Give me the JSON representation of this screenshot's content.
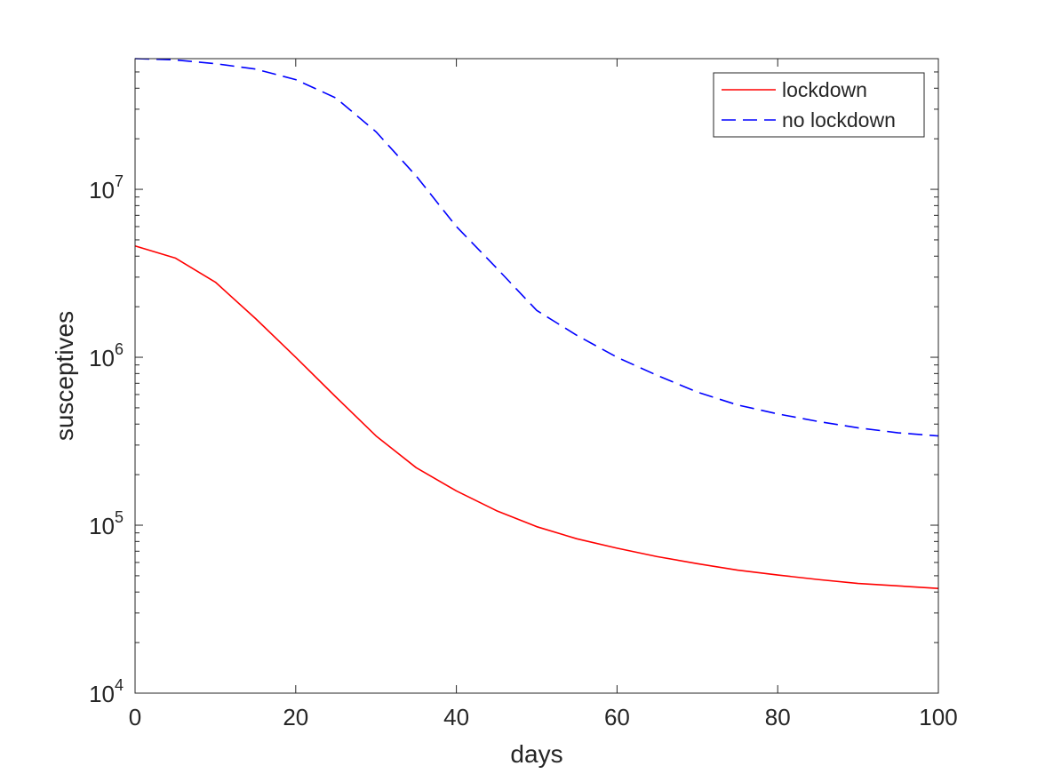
{
  "chart_data": {
    "type": "line",
    "xlabel": "days",
    "ylabel": "susceptives",
    "xlim": [
      0,
      100
    ],
    "ylim": [
      10000,
      60000000
    ],
    "yscale": "log",
    "xticks": [
      0,
      20,
      40,
      60,
      80,
      100
    ],
    "yticks": [
      {
        "value": 10000,
        "base": "10",
        "exp": "4"
      },
      {
        "value": 100000,
        "base": "10",
        "exp": "5"
      },
      {
        "value": 1000000,
        "base": "10",
        "exp": "6"
      },
      {
        "value": 10000000,
        "base": "10",
        "exp": "7"
      }
    ],
    "grid": false,
    "legend_position": "top-right",
    "series": [
      {
        "name": "lockdown",
        "color": "#ff0000",
        "style": "solid",
        "x": [
          0,
          5,
          10,
          15,
          20,
          25,
          30,
          35,
          40,
          45,
          50,
          55,
          60,
          65,
          70,
          75,
          80,
          85,
          90,
          95,
          100
        ],
        "y": [
          4600000,
          3900000,
          2800000,
          1700000,
          1000000,
          580000,
          340000,
          220000,
          160000,
          122000,
          98000,
          83000,
          73000,
          65000,
          59000,
          54000,
          50500,
          47500,
          45000,
          43500,
          42000
        ]
      },
      {
        "name": "no lockdown",
        "color": "#0000ff",
        "style": "dashed",
        "x": [
          0,
          5,
          10,
          15,
          20,
          25,
          30,
          35,
          40,
          45,
          50,
          55,
          60,
          65,
          70,
          75,
          80,
          85,
          90,
          95,
          100
        ],
        "y": [
          60000000,
          59000000,
          56000000,
          52000000,
          45000000,
          35000000,
          22000000,
          12000000,
          6000000,
          3400000,
          1900000,
          1350000,
          1000000,
          780000,
          620000,
          520000,
          460000,
          415000,
          380000,
          355000,
          340000
        ]
      }
    ]
  }
}
